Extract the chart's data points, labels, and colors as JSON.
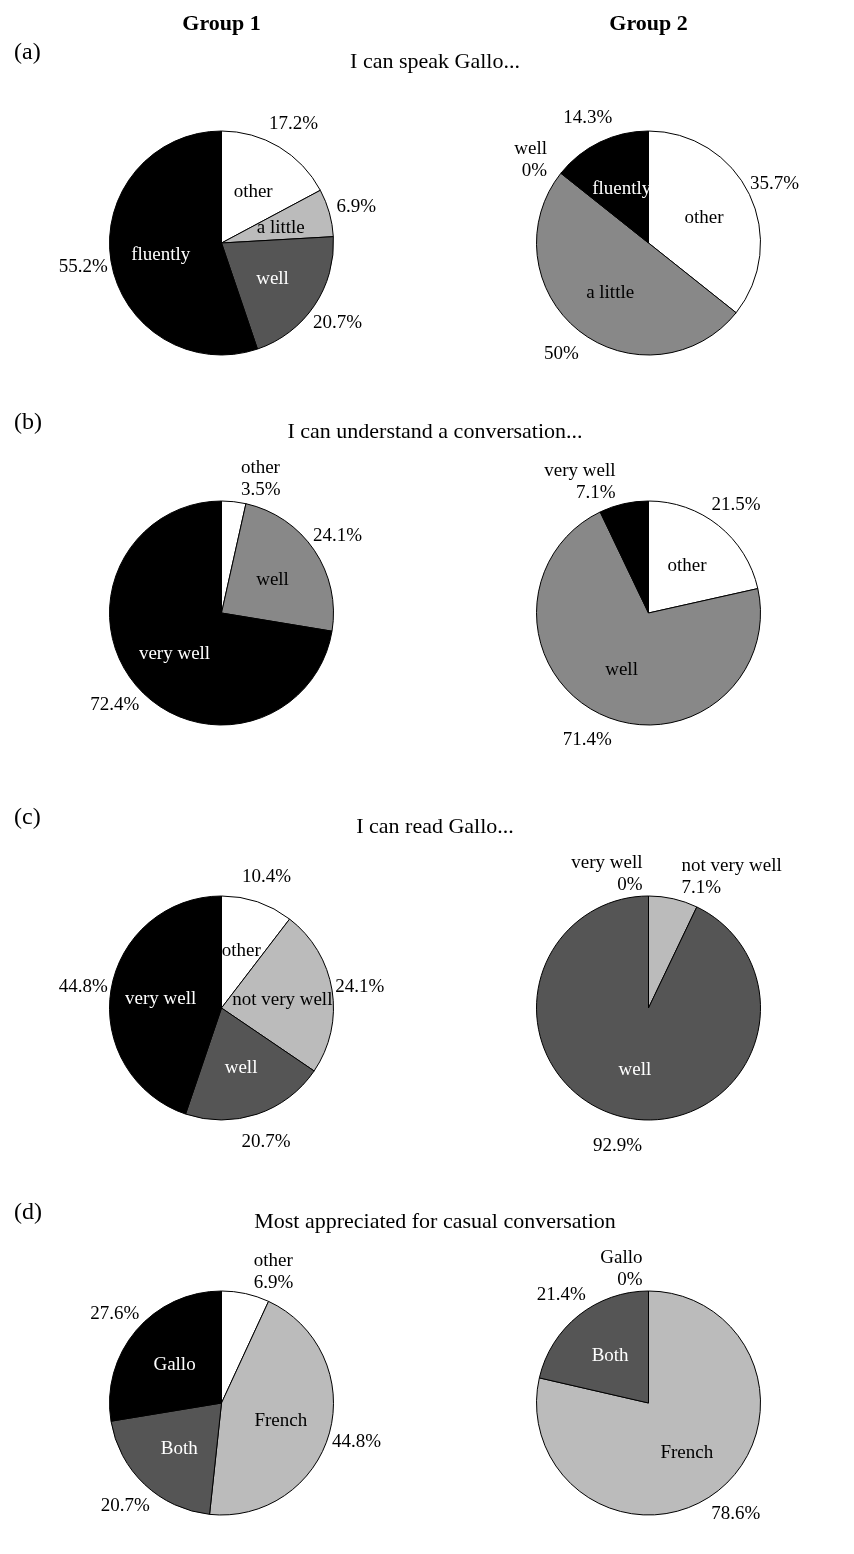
{
  "chart_data": [
    {
      "type": "pie",
      "title": "Group 1",
      "subtitle": "I can speak Gallo...",
      "annotations": [
        "(a)"
      ],
      "categories": [
        "other",
        "a little",
        "well",
        "fluently"
      ],
      "values": [
        17.2,
        6.9,
        20.7,
        55.2
      ],
      "value_labels": [
        "17.2%",
        "6.9%",
        "20.7%",
        "55.2%"
      ],
      "colors": [
        "#ffffff",
        "#bbbbbb",
        "#555555",
        "#000000"
      ]
    },
    {
      "type": "pie",
      "title": "Group 2",
      "categories": [
        "other",
        "a little",
        "well",
        "fluently"
      ],
      "values": [
        35.7,
        50,
        0,
        14.3
      ],
      "value_labels": [
        "35.7%",
        "50%",
        "0%",
        "14.3%"
      ],
      "colors": [
        "#ffffff",
        "#888888",
        "#555555",
        "#000000"
      ]
    },
    {
      "type": "pie",
      "subtitle": "I can understand a conversation...",
      "annotations": [
        "(b)"
      ],
      "categories": [
        "other",
        "well",
        "very well"
      ],
      "values": [
        3.5,
        24.1,
        72.4
      ],
      "value_labels": [
        "3.5%",
        "24.1%",
        "72.4%"
      ],
      "colors": [
        "#ffffff",
        "#888888",
        "#000000"
      ]
    },
    {
      "type": "pie",
      "categories": [
        "other",
        "well",
        "very well"
      ],
      "values": [
        21.5,
        71.4,
        7.1
      ],
      "value_labels": [
        "21.5%",
        "71.4%",
        "7.1%"
      ],
      "colors": [
        "#ffffff",
        "#888888",
        "#000000"
      ]
    },
    {
      "type": "pie",
      "subtitle": "I can read Gallo...",
      "annotations": [
        "(c)"
      ],
      "categories": [
        "other",
        "not very well",
        "well",
        "very well"
      ],
      "values": [
        10.4,
        24.1,
        20.7,
        44.8
      ],
      "value_labels": [
        "10.4%",
        "24.1%",
        "20.7%",
        "44.8%"
      ],
      "colors": [
        "#ffffff",
        "#bbbbbb",
        "#555555",
        "#000000"
      ]
    },
    {
      "type": "pie",
      "categories": [
        "not very well",
        "well",
        "very well"
      ],
      "values": [
        7.1,
        92.9,
        0
      ],
      "value_labels": [
        "7.1%",
        "92.9%",
        "0%"
      ],
      "colors": [
        "#bbbbbb",
        "#555555",
        "#000000"
      ]
    },
    {
      "type": "pie",
      "subtitle": "Most appreciated for casual conversation",
      "annotations": [
        "(d)"
      ],
      "categories": [
        "other",
        "French",
        "Both",
        "Gallo"
      ],
      "values": [
        6.9,
        44.8,
        20.7,
        27.6
      ],
      "value_labels": [
        "6.9%",
        "44.8%",
        "20.7%",
        "27.6%"
      ],
      "colors": [
        "#ffffff",
        "#bbbbbb",
        "#555555",
        "#000000"
      ]
    },
    {
      "type": "pie",
      "categories": [
        "French",
        "Both",
        "Gallo"
      ],
      "values": [
        78.6,
        21.4,
        0
      ],
      "value_labels": [
        "78.6%",
        "21.4%",
        "0%"
      ],
      "colors": [
        "#bbbbbb",
        "#555555",
        "#000000"
      ]
    }
  ]
}
